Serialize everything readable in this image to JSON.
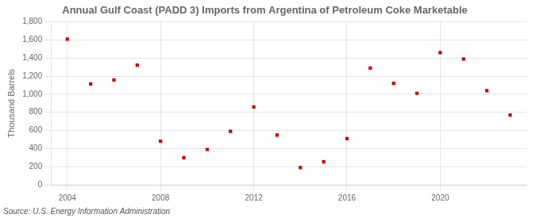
{
  "chart_data": {
    "type": "scatter",
    "title": "Annual Gulf Coast (PADD 3) Imports from Argentina of Petroleum Coke Marketable",
    "ylabel": "Thousand Barrels",
    "annotations": [
      "Source: U.S. Energy Information Administration"
    ],
    "x": [
      2004,
      2005,
      2006,
      2007,
      2008,
      2009,
      2010,
      2011,
      2012,
      2013,
      2014,
      2015,
      2016,
      2017,
      2018,
      2019,
      2020,
      2021,
      2022,
      2023
    ],
    "values": [
      1609,
      1113,
      1158,
      1322,
      481,
      300,
      390,
      591,
      860,
      549,
      190,
      252,
      510,
      1290,
      1121,
      1010,
      1461,
      1390,
      1040,
      770
    ],
    "color": "#cc0000",
    "marker": "square",
    "xlim": [
      2003.3,
      2023.7
    ],
    "xticks": [
      2004,
      2008,
      2012,
      2016,
      2020
    ],
    "ylim": [
      0,
      1800
    ],
    "yticks": [
      0,
      200,
      400,
      600,
      800,
      {
        "value": 1000,
        "label": "1,000"
      },
      {
        "value": 1200,
        "label": "1,200"
      },
      {
        "value": 1400,
        "label": "1,400"
      },
      {
        "value": 1600,
        "label": "1,600"
      },
      {
        "value": 1800,
        "label": "1,800"
      }
    ],
    "grid": true
  }
}
